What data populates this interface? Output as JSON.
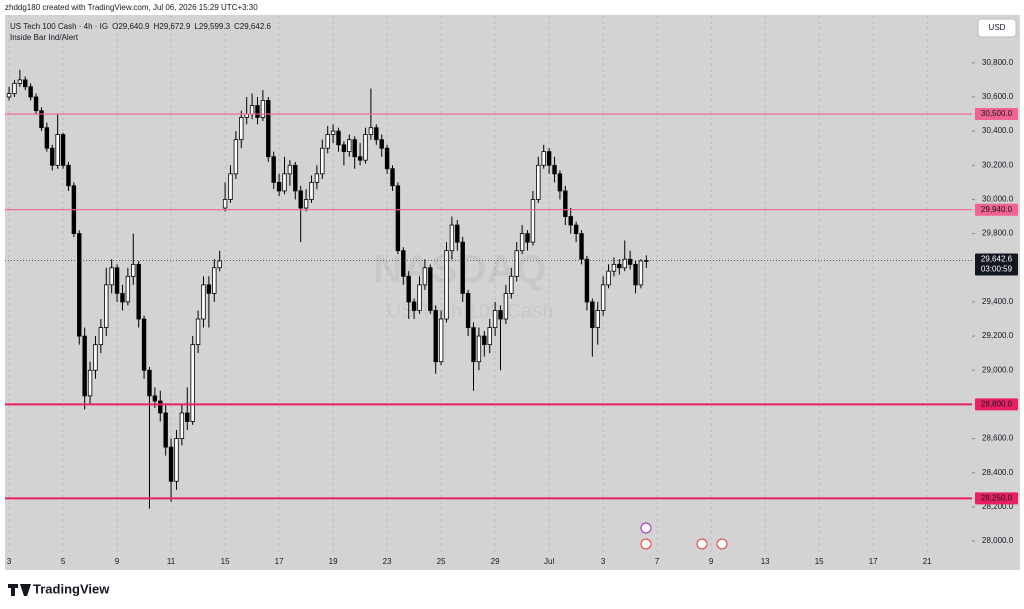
{
  "chart_data": {
    "type": "candlestick",
    "credit": "zhddg180 created with TradingView.com, Jul 06, 2026 15:29 UTC+3:30",
    "symbol": "US Tech 100 Cash · 4h · IG",
    "ohlc_header": [
      "O29,640.9",
      "H29,672.9",
      "L29,599.3",
      "C29,642.6"
    ],
    "indicator": "Inside Bar Ind/Alert",
    "currency": "USD",
    "brand": "TradingView",
    "watermark": [
      "NASDAQ",
      "US Tech 100 Cash"
    ],
    "up_color": "#ffffff",
    "down_color": "#000000",
    "ohlc": [
      [
        30600,
        30660,
        30580,
        30620
      ],
      [
        30620,
        30700,
        30600,
        30680
      ],
      [
        30680,
        30760,
        30660,
        30700
      ],
      [
        30700,
        30720,
        30640,
        30660
      ],
      [
        30660,
        30680,
        30580,
        30600
      ],
      [
        30600,
        30620,
        30500,
        30520
      ],
      [
        30520,
        30540,
        30400,
        30420
      ],
      [
        30420,
        30450,
        30280,
        30300
      ],
      [
        30300,
        30320,
        30170,
        30200
      ],
      [
        30200,
        30500,
        30180,
        30380
      ],
      [
        30380,
        30390,
        30180,
        30200
      ],
      [
        30200,
        30220,
        30050,
        30080
      ],
      [
        30080,
        30100,
        29780,
        29800
      ],
      [
        29800,
        29820,
        29150,
        29200
      ],
      [
        29200,
        29250,
        28770,
        28850
      ],
      [
        28850,
        29050,
        28800,
        29000
      ],
      [
        29000,
        29200,
        28950,
        29150
      ],
      [
        29150,
        29300,
        29100,
        29250
      ],
      [
        29250,
        29600,
        29200,
        29500
      ],
      [
        29500,
        29650,
        29450,
        29600
      ],
      [
        29600,
        29620,
        29400,
        29450
      ],
      [
        29450,
        29500,
        29350,
        29400
      ],
      [
        29400,
        29600,
        29380,
        29550
      ],
      [
        29550,
        29800,
        29500,
        29620
      ],
      [
        29620,
        29640,
        29250,
        29300
      ],
      [
        29300,
        29320,
        28950,
        29000
      ],
      [
        29000,
        29020,
        28190,
        28850
      ],
      [
        28850,
        28900,
        28780,
        28820
      ],
      [
        28820,
        28880,
        28700,
        28750
      ],
      [
        28750,
        28800,
        28500,
        28550
      ],
      [
        28550,
        28600,
        28230,
        28350
      ],
      [
        28350,
        28650,
        28300,
        28600
      ],
      [
        28600,
        28800,
        28560,
        28750
      ],
      [
        28750,
        28900,
        28650,
        28700
      ],
      [
        28700,
        29200,
        28680,
        29150
      ],
      [
        29150,
        29350,
        29100,
        29300
      ],
      [
        29300,
        29550,
        29250,
        29500
      ],
      [
        29500,
        29550,
        29250,
        29450
      ],
      [
        29450,
        29650,
        29400,
        29600
      ],
      [
        29600,
        29700,
        29580,
        29640
      ],
      [
        29950,
        30100,
        29930,
        30000
      ],
      [
        30000,
        30200,
        29980,
        30150
      ],
      [
        30150,
        30400,
        30120,
        30350
      ],
      [
        30350,
        30520,
        30300,
        30480
      ],
      [
        30480,
        30600,
        30440,
        30500
      ],
      [
        30500,
        30620,
        30470,
        30550
      ],
      [
        30550,
        30600,
        30440,
        30480
      ],
      [
        30480,
        30640,
        30460,
        30580
      ],
      [
        30580,
        30600,
        30220,
        30250
      ],
      [
        30250,
        30280,
        30060,
        30100
      ],
      [
        30100,
        30150,
        30020,
        30050
      ],
      [
        30050,
        30250,
        30030,
        30150
      ],
      [
        30150,
        30230,
        30080,
        30200
      ],
      [
        30200,
        30220,
        30000,
        30050
      ],
      [
        30050,
        30080,
        29750,
        29950
      ],
      [
        29950,
        30060,
        29930,
        30000
      ],
      [
        30000,
        30140,
        29980,
        30100
      ],
      [
        30100,
        30200,
        30060,
        30150
      ],
      [
        30150,
        30350,
        30120,
        30300
      ],
      [
        30300,
        30430,
        30270,
        30380
      ],
      [
        30380,
        30440,
        30330,
        30400
      ],
      [
        30400,
        30420,
        30280,
        30320
      ],
      [
        30320,
        30340,
        30200,
        30280
      ],
      [
        30280,
        30380,
        30250,
        30350
      ],
      [
        30350,
        30370,
        30180,
        30250
      ],
      [
        30250,
        30330,
        30200,
        30230
      ],
      [
        30230,
        30420,
        30210,
        30380
      ],
      [
        30380,
        30650,
        30350,
        30420
      ],
      [
        30420,
        30440,
        30320,
        30350
      ],
      [
        30350,
        30380,
        30250,
        30300
      ],
      [
        30300,
        30320,
        30150,
        30180
      ],
      [
        30180,
        30200,
        30050,
        30080
      ],
      [
        30080,
        30100,
        29680,
        29700
      ],
      [
        29700,
        29720,
        29500,
        29550
      ],
      [
        29550,
        29580,
        29300,
        29400
      ],
      [
        29400,
        29420,
        29300,
        29350
      ],
      [
        29350,
        29550,
        29330,
        29500
      ],
      [
        29500,
        29650,
        29470,
        29600
      ],
      [
        29600,
        29620,
        29330,
        29350
      ],
      [
        29350,
        29380,
        28980,
        29050
      ],
      [
        29050,
        29350,
        29030,
        29300
      ],
      [
        29300,
        29750,
        29280,
        29700
      ],
      [
        29700,
        29900,
        29650,
        29850
      ],
      [
        29850,
        29880,
        29700,
        29750
      ],
      [
        29750,
        29780,
        29400,
        29450
      ],
      [
        29450,
        29470,
        29200,
        29250
      ],
      [
        29250,
        29280,
        28880,
        29050
      ],
      [
        29050,
        29250,
        29000,
        29200
      ],
      [
        29200,
        29230,
        29080,
        29150
      ],
      [
        29150,
        29300,
        29100,
        29250
      ],
      [
        29250,
        29400,
        29200,
        29350
      ],
      [
        29350,
        29380,
        29000,
        29300
      ],
      [
        29300,
        29500,
        29270,
        29450
      ],
      [
        29450,
        29600,
        29420,
        29550
      ],
      [
        29550,
        29750,
        29520,
        29700
      ],
      [
        29700,
        29850,
        29680,
        29800
      ],
      [
        29800,
        29820,
        29700,
        29750
      ],
      [
        29750,
        30050,
        29730,
        30000
      ],
      [
        30000,
        30250,
        29980,
        30200
      ],
      [
        30200,
        30320,
        30180,
        30280
      ],
      [
        30280,
        30300,
        30150,
        30200
      ],
      [
        30200,
        30250,
        30100,
        30150
      ],
      [
        30150,
        30170,
        30000,
        30050
      ],
      [
        30050,
        30080,
        29850,
        29900
      ],
      [
        29900,
        29950,
        29800,
        29850
      ],
      [
        29850,
        29870,
        29750,
        29800
      ],
      [
        29800,
        29820,
        29620,
        29650
      ],
      [
        29650,
        29670,
        29350,
        29400
      ],
      [
        29400,
        29420,
        29080,
        29250
      ],
      [
        29250,
        29400,
        29150,
        29350
      ],
      [
        29350,
        29550,
        29320,
        29500
      ],
      [
        29500,
        29620,
        29480,
        29580
      ],
      [
        29580,
        29660,
        29550,
        29620
      ],
      [
        29620,
        29650,
        29560,
        29600
      ],
      [
        29600,
        29760,
        29580,
        29650
      ],
      [
        29650,
        29700,
        29590,
        29620
      ],
      [
        29620,
        29640,
        29450,
        29500
      ],
      [
        29500,
        29650,
        29480,
        29640
      ],
      [
        29640.9,
        29672.9,
        29599.3,
        29642.6
      ]
    ],
    "xlim": [
      -0.75,
      178.3
    ],
    "xticks": [
      {
        "value": 0,
        "label": "3"
      },
      {
        "value": 10,
        "label": "5"
      },
      {
        "value": 20,
        "label": "9"
      },
      {
        "value": 30,
        "label": "11"
      },
      {
        "value": 40,
        "label": "15"
      },
      {
        "value": 50,
        "label": "17"
      },
      {
        "value": 60,
        "label": "19"
      },
      {
        "value": 70,
        "label": "23"
      },
      {
        "value": 80,
        "label": "25"
      },
      {
        "value": 90,
        "label": "29"
      },
      {
        "value": 100,
        "label": "Jul"
      },
      {
        "value": 110,
        "label": "3"
      },
      {
        "value": 120,
        "label": "7"
      },
      {
        "value": 130,
        "label": "9"
      },
      {
        "value": 140,
        "label": "13"
      },
      {
        "value": 150,
        "label": "15"
      },
      {
        "value": 160,
        "label": "17"
      },
      {
        "value": 170,
        "label": "21"
      }
    ],
    "ylim": [
      27930,
      31080
    ],
    "yticks": [
      {
        "value": 28000,
        "label": "28,000.0"
      },
      {
        "value": 28200,
        "label": "28,200.0"
      },
      {
        "value": 28400,
        "label": "28,400.0"
      },
      {
        "value": 28600,
        "label": "28,600.0"
      },
      {
        "value": 29000,
        "label": "29,000.0"
      },
      {
        "value": 29200,
        "label": "29,200.0"
      },
      {
        "value": 29400,
        "label": "29,400.0"
      },
      {
        "value": 29800,
        "label": "29,800.0"
      },
      {
        "value": 30000,
        "label": "30,000.0"
      },
      {
        "value": 30200,
        "label": "30,200.0"
      },
      {
        "value": 30400,
        "label": "30,400.0"
      },
      {
        "value": 30600,
        "label": "30,600.0"
      },
      {
        "value": 30800,
        "label": "30,800.0"
      }
    ],
    "levels": [
      {
        "value": 30500,
        "label": "30,500.0",
        "color": "#f06292"
      },
      {
        "value": 29940,
        "label": "29,940.0",
        "color": "#f06292"
      },
      {
        "value": 28800,
        "label": "28,800.0",
        "color": "#e91e63"
      },
      {
        "value": 28250,
        "label": "28,250.0",
        "color": "#e91e63"
      }
    ],
    "last_price": {
      "value": 29642.6,
      "label": "29,642.6"
    },
    "countdown": "03:00:59"
  }
}
